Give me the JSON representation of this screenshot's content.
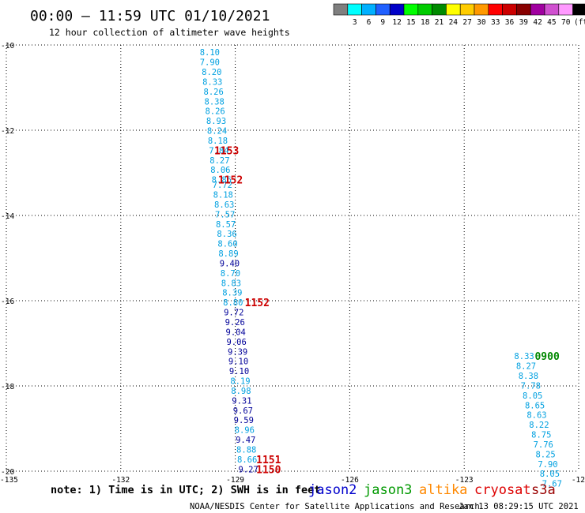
{
  "header": {
    "title": "00:00 – 11:59 UTC 01/10/2021",
    "subtitle": "12 hour collection of altimeter wave heights"
  },
  "legend": {
    "swatches": [
      {
        "color": "#7f7f7f",
        "label": ""
      },
      {
        "color": "#00ffff",
        "label": "3"
      },
      {
        "color": "#00b0ff",
        "label": "6"
      },
      {
        "color": "#2060ff",
        "label": "9"
      },
      {
        "color": "#0000c8",
        "label": "12"
      },
      {
        "color": "#00ff00",
        "label": "15"
      },
      {
        "color": "#00cc00",
        "label": "18"
      },
      {
        "color": "#008a00",
        "label": "21"
      },
      {
        "color": "#ffff00",
        "label": "24"
      },
      {
        "color": "#ffcc00",
        "label": "27"
      },
      {
        "color": "#ff9900",
        "label": "30"
      },
      {
        "color": "#ff0000",
        "label": "33"
      },
      {
        "color": "#cc0000",
        "label": "36"
      },
      {
        "color": "#880000",
        "label": "39"
      },
      {
        "color": "#a000a0",
        "label": "42"
      },
      {
        "color": "#d050d0",
        "label": "45"
      },
      {
        "color": "#ff99ff",
        "label": "70"
      },
      {
        "color": "#000000",
        "label": "(ft)"
      }
    ]
  },
  "footer": {
    "note": "note: 1) Time is in UTC; 2) SWH is in feet",
    "satellites": [
      {
        "name": "jason2",
        "color": "#0000cc"
      },
      {
        "name": "jason3",
        "color": "#009900"
      },
      {
        "name": "altika",
        "color": "#ff8800"
      },
      {
        "name": "cryosat",
        "color": "#dd0000"
      },
      {
        "name": "s3a",
        "color": "#990000"
      }
    ],
    "credit": "NOAA/NESDIS Center for Satellite Applications and Research",
    "timestamp": "Jan 13 08:29:15 UTC 2021"
  },
  "chart_data": {
    "type": "scatter",
    "x_ticks": [
      "-135",
      "-132",
      "-129",
      "-126",
      "-123",
      "-12"
    ],
    "y_ticks": [
      "-10",
      "-12",
      "-14",
      "-16",
      "-18",
      "-20"
    ],
    "xlim": [
      -135,
      -120
    ],
    "ylim": [
      -20,
      -10
    ],
    "grid": true,
    "colors": {
      "light": "#00a0e0",
      "dark": "#000099",
      "time_red": "#cc0000",
      "time_green": "#008800"
    },
    "tracks": [
      {
        "points": [
          {
            "lon": -129.93,
            "lat": -10.17,
            "v": "8.10",
            "c": "light"
          },
          {
            "lon": -129.93,
            "lat": -10.4,
            "v": "7.90",
            "c": "light"
          },
          {
            "lon": -129.88,
            "lat": -10.63,
            "v": "8.20",
            "c": "light"
          },
          {
            "lon": -129.86,
            "lat": -10.86,
            "v": "8.33",
            "c": "light"
          },
          {
            "lon": -129.83,
            "lat": -11.09,
            "v": "8.26",
            "c": "light"
          },
          {
            "lon": -129.81,
            "lat": -11.32,
            "v": "8.38",
            "c": "light"
          },
          {
            "lon": -129.79,
            "lat": -11.55,
            "v": "8.26",
            "c": "light"
          },
          {
            "lon": -129.76,
            "lat": -11.78,
            "v": "8.93",
            "c": "light"
          },
          {
            "lon": -129.74,
            "lat": -12.01,
            "v": "8.24",
            "c": "light"
          },
          {
            "lon": -129.72,
            "lat": -12.24,
            "v": "8.18",
            "c": "light"
          },
          {
            "lon": -129.69,
            "lat": -12.47,
            "v": "7.84",
            "c": "light"
          },
          {
            "lon": -129.67,
            "lat": -12.7,
            "v": "8.27",
            "c": "light"
          },
          {
            "lon": -129.65,
            "lat": -12.93,
            "v": "8.06",
            "c": "light"
          },
          {
            "lon": -129.62,
            "lat": -13.16,
            "v": "8.86",
            "c": "light"
          },
          {
            "lon": -129.6,
            "lat": -13.28,
            "v": "7.72",
            "c": "light"
          },
          {
            "lon": -129.58,
            "lat": -13.51,
            "v": "8.18",
            "c": "light"
          },
          {
            "lon": -129.55,
            "lat": -13.74,
            "v": "8.63",
            "c": "light"
          },
          {
            "lon": -129.53,
            "lat": -13.97,
            "v": "7.57",
            "c": "light"
          },
          {
            "lon": -129.51,
            "lat": -14.2,
            "v": "8.57",
            "c": "light"
          },
          {
            "lon": -129.48,
            "lat": -14.43,
            "v": "8.36",
            "c": "light"
          },
          {
            "lon": -129.46,
            "lat": -14.66,
            "v": "8.60",
            "c": "light"
          },
          {
            "lon": -129.44,
            "lat": -14.89,
            "v": "8.89",
            "c": "light"
          },
          {
            "lon": -129.41,
            "lat": -15.12,
            "v": "9.40",
            "c": "dark"
          },
          {
            "lon": -129.39,
            "lat": -15.35,
            "v": "8.70",
            "c": "light"
          },
          {
            "lon": -129.37,
            "lat": -15.58,
            "v": "8.83",
            "c": "light"
          },
          {
            "lon": -129.34,
            "lat": -15.81,
            "v": "8.39",
            "c": "light"
          },
          {
            "lon": -129.32,
            "lat": -16.04,
            "v": "8.80",
            "c": "light"
          },
          {
            "lon": -129.3,
            "lat": -16.27,
            "v": "9.72",
            "c": "dark"
          },
          {
            "lon": -129.27,
            "lat": -16.5,
            "v": "9.26",
            "c": "dark"
          },
          {
            "lon": -129.25,
            "lat": -16.73,
            "v": "9.04",
            "c": "dark"
          },
          {
            "lon": -129.23,
            "lat": -16.96,
            "v": "9.06",
            "c": "dark"
          },
          {
            "lon": -129.2,
            "lat": -17.19,
            "v": "9.39",
            "c": "dark"
          },
          {
            "lon": -129.18,
            "lat": -17.42,
            "v": "9.10",
            "c": "dark"
          },
          {
            "lon": -129.16,
            "lat": -17.65,
            "v": "9.10",
            "c": "dark"
          },
          {
            "lon": -129.13,
            "lat": -17.88,
            "v": "8.19",
            "c": "light"
          },
          {
            "lon": -129.11,
            "lat": -18.11,
            "v": "8.98",
            "c": "light"
          },
          {
            "lon": -129.09,
            "lat": -18.34,
            "v": "9.31",
            "c": "dark"
          },
          {
            "lon": -129.06,
            "lat": -18.57,
            "v": "9.67",
            "c": "dark"
          },
          {
            "lon": -129.04,
            "lat": -18.8,
            "v": "9.59",
            "c": "dark"
          },
          {
            "lon": -129.02,
            "lat": -19.03,
            "v": "8.96",
            "c": "light"
          },
          {
            "lon": -128.99,
            "lat": -19.26,
            "v": "9.47",
            "c": "dark"
          },
          {
            "lon": -128.97,
            "lat": -19.49,
            "v": "8.88",
            "c": "light"
          },
          {
            "lon": -128.95,
            "lat": -19.72,
            "v": "8.66",
            "c": "light"
          },
          {
            "lon": -128.92,
            "lat": -19.95,
            "v": "9.27",
            "c": "dark"
          }
        ],
        "times": [
          {
            "lon": -129.55,
            "lat": -12.47,
            "label": "1153",
            "c": "time_red"
          },
          {
            "lon": -129.45,
            "lat": -13.16,
            "label": "1152",
            "c": "time_red"
          },
          {
            "lon": -128.75,
            "lat": -16.04,
            "label": "1152",
            "c": "time_red"
          },
          {
            "lon": -128.45,
            "lat": -19.72,
            "label": "1151",
            "c": "time_red"
          },
          {
            "lon": -128.45,
            "lat": -19.95,
            "label": "1150",
            "c": "time_red"
          }
        ]
      },
      {
        "points": [
          {
            "lon": -121.69,
            "lat": -17.3,
            "v": "8.33",
            "c": "light"
          },
          {
            "lon": -121.64,
            "lat": -17.53,
            "v": "8.27",
            "c": "light"
          },
          {
            "lon": -121.58,
            "lat": -17.76,
            "v": "8.38",
            "c": "light"
          },
          {
            "lon": -121.52,
            "lat": -17.99,
            "v": "7.78",
            "c": "light"
          },
          {
            "lon": -121.47,
            "lat": -18.22,
            "v": "8.05",
            "c": "light"
          },
          {
            "lon": -121.41,
            "lat": -18.45,
            "v": "8.65",
            "c": "light"
          },
          {
            "lon": -121.36,
            "lat": -18.68,
            "v": "8.63",
            "c": "light"
          },
          {
            "lon": -121.3,
            "lat": -18.91,
            "v": "8.22",
            "c": "light"
          },
          {
            "lon": -121.24,
            "lat": -19.14,
            "v": "8.75",
            "c": "light"
          },
          {
            "lon": -121.19,
            "lat": -19.37,
            "v": "7.76",
            "c": "light"
          },
          {
            "lon": -121.13,
            "lat": -19.6,
            "v": "8.25",
            "c": "light"
          },
          {
            "lon": -121.07,
            "lat": -19.83,
            "v": "7.90",
            "c": "light"
          },
          {
            "lon": -121.02,
            "lat": -20.06,
            "v": "8.05",
            "c": "light"
          },
          {
            "lon": -120.96,
            "lat": -20.29,
            "v": "7.67",
            "c": "light"
          }
        ],
        "times": [
          {
            "lon": -121.15,
            "lat": -17.3,
            "label": "0900",
            "c": "time_green"
          }
        ]
      }
    ]
  }
}
